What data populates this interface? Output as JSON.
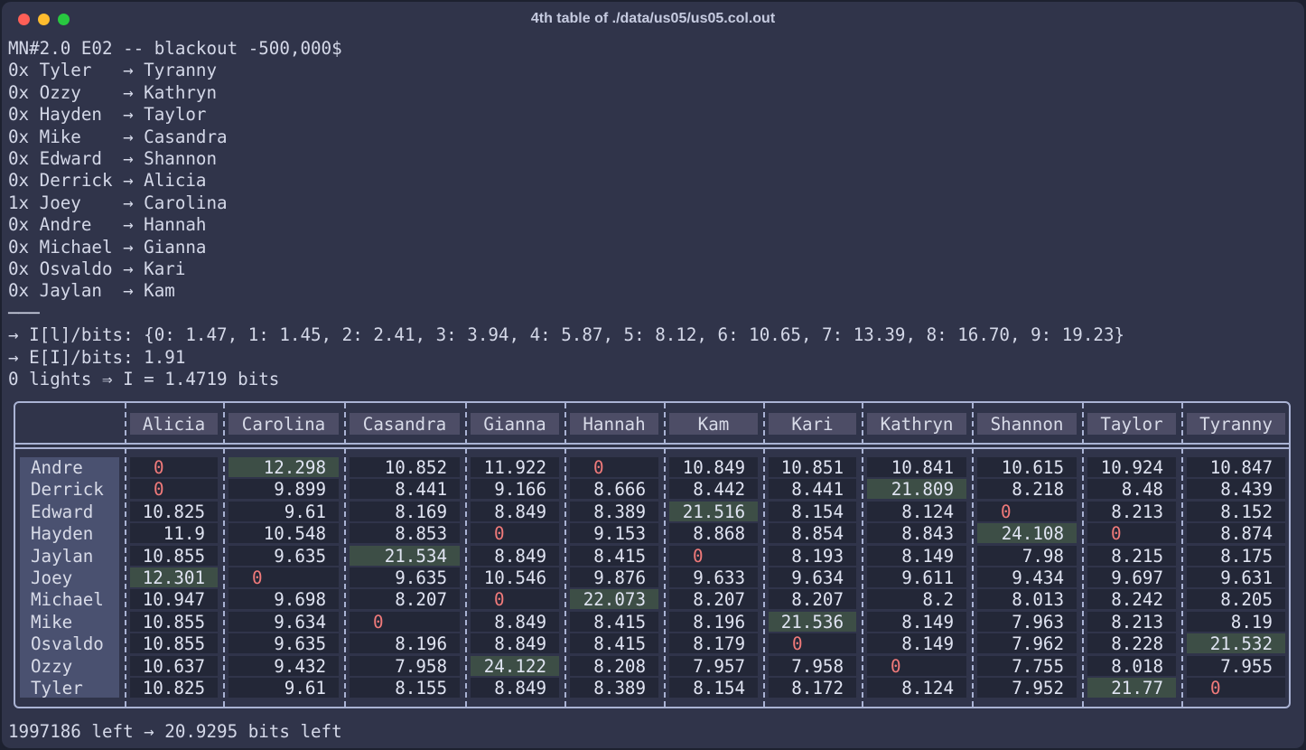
{
  "window": {
    "title": "4th table of ./data/us05/us05.col.out"
  },
  "header_line": "MN#2.0 E02 -- blackout -500,000$",
  "pairs": [
    "0x Tyler   → Tyranny",
    "0x Ozzy    → Kathryn",
    "0x Hayden  → Taylor",
    "0x Mike    → Casandra",
    "0x Edward  → Shannon",
    "0x Derrick → Alicia",
    "1x Joey    → Carolina",
    "0x Andre   → Hannah",
    "0x Michael → Gianna",
    "0x Osvaldo → Kari",
    "0x Jaylan  → Kam"
  ],
  "separator": "───",
  "stats": {
    "info_per_lights": "→ I[l]/bits: {0: 1.47, 1: 1.45, 2: 2.41, 3: 3.94, 4: 5.87, 5: 8.12, 6: 10.65, 7: 13.39, 8: 16.70, 9: 19.23}",
    "expected_info": "→ E[I]/bits: 1.91",
    "lights_result": "0 lights ⇒ I = 1.4719 bits"
  },
  "table": {
    "columns": [
      "Alicia",
      "Carolina",
      "Casandra",
      "Gianna",
      "Hannah",
      "Kam",
      "Kari",
      "Kathryn",
      "Shannon",
      "Taylor",
      "Tyranny"
    ],
    "rows": [
      {
        "name": "Andre",
        "values": [
          "0",
          "12.298",
          "10.852",
          "11.922",
          "0",
          "10.849",
          "10.851",
          "10.841",
          "10.615",
          "10.924",
          "10.847"
        ],
        "highlight": 1
      },
      {
        "name": "Derrick",
        "values": [
          "0",
          "9.899",
          "8.441",
          "9.166",
          "8.666",
          "8.442",
          "8.441",
          "21.809",
          "8.218",
          "8.48",
          "8.439"
        ],
        "highlight": 7
      },
      {
        "name": "Edward",
        "values": [
          "10.825",
          "9.61",
          "8.169",
          "8.849",
          "8.389",
          "21.516",
          "8.154",
          "8.124",
          "0",
          "8.213",
          "8.152"
        ],
        "highlight": 5
      },
      {
        "name": "Hayden",
        "values": [
          "11.9",
          "10.548",
          "8.853",
          "0",
          "9.153",
          "8.868",
          "8.854",
          "8.843",
          "24.108",
          "0",
          "8.874"
        ],
        "highlight": 8
      },
      {
        "name": "Jaylan",
        "values": [
          "10.855",
          "9.635",
          "21.534",
          "8.849",
          "8.415",
          "0",
          "8.193",
          "8.149",
          "7.98",
          "8.215",
          "8.175"
        ],
        "highlight": 2
      },
      {
        "name": "Joey",
        "values": [
          "12.301",
          "0",
          "9.635",
          "10.546",
          "9.876",
          "9.633",
          "9.634",
          "9.611",
          "9.434",
          "9.697",
          "9.631"
        ],
        "highlight": 0
      },
      {
        "name": "Michael",
        "values": [
          "10.947",
          "9.698",
          "8.207",
          "0",
          "22.073",
          "8.207",
          "8.207",
          "8.2",
          "8.013",
          "8.242",
          "8.205"
        ],
        "highlight": 4
      },
      {
        "name": "Mike",
        "values": [
          "10.855",
          "9.634",
          "0",
          "8.849",
          "8.415",
          "8.196",
          "21.536",
          "8.149",
          "7.963",
          "8.213",
          "8.19"
        ],
        "highlight": 6
      },
      {
        "name": "Osvaldo",
        "values": [
          "10.855",
          "9.635",
          "8.196",
          "8.849",
          "8.415",
          "8.179",
          "0",
          "8.149",
          "7.962",
          "8.228",
          "21.532"
        ],
        "highlight": 10
      },
      {
        "name": "Ozzy",
        "values": [
          "10.637",
          "9.432",
          "7.958",
          "24.122",
          "8.208",
          "7.957",
          "7.958",
          "0",
          "7.755",
          "8.018",
          "7.955"
        ],
        "highlight": 3
      },
      {
        "name": "Tyler",
        "values": [
          "10.825",
          "9.61",
          "8.155",
          "8.849",
          "8.389",
          "8.154",
          "8.172",
          "8.124",
          "7.952",
          "21.77",
          "0"
        ],
        "highlight": 9
      }
    ]
  },
  "footer_line": "1997186 left → 20.9295 bits left",
  "colors": {
    "background": "#30344a",
    "highlight_cell": "#3d4e46",
    "zero_text": "#f07a7a",
    "border": "#aab3d4"
  }
}
